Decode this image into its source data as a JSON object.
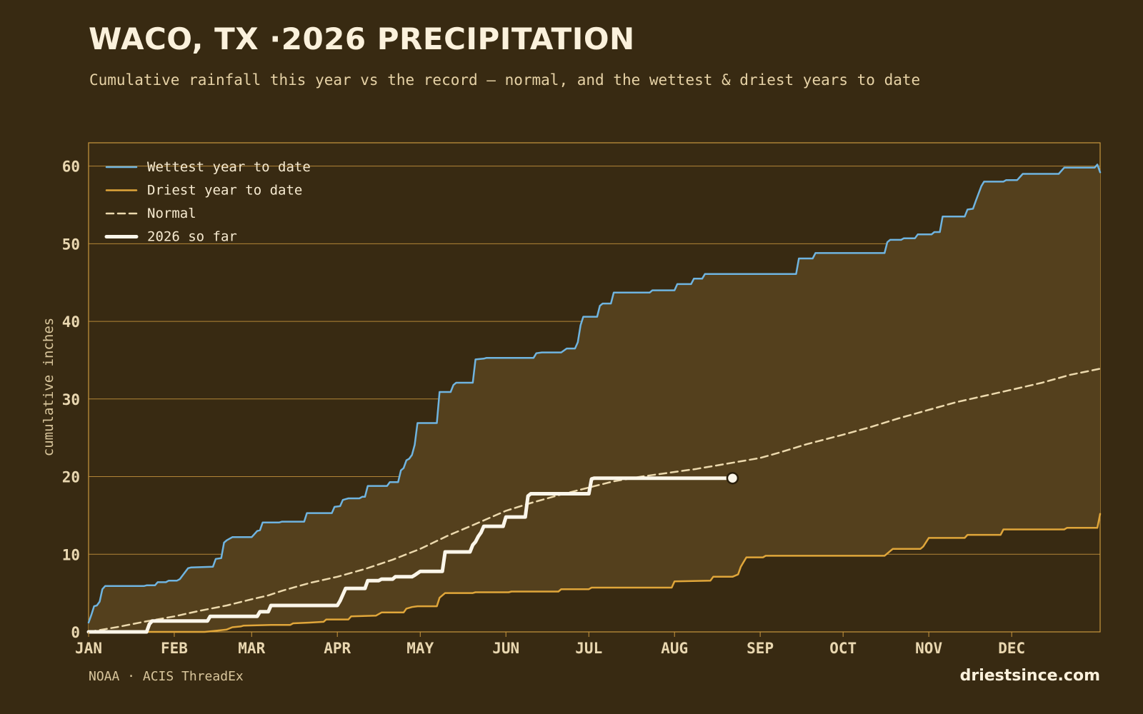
{
  "header": {
    "title": "WACO, TX ·2026 PRECIPITATION",
    "subtitle": "Cumulative rainfall this year vs the record — normal, and the wettest & driest years to date"
  },
  "footer": {
    "source": "NOAA · ACIS ThreadEx",
    "site": "driestsince.com"
  },
  "colors": {
    "background": "#382a12",
    "band": "#54401d",
    "grid": "#c9973e",
    "wettest": "#6fb4e0",
    "driest": "#e0a63a",
    "normal": "#ecd9ad",
    "current": "#fbf6ea"
  },
  "chart_data": {
    "type": "line",
    "ylabel": "cumulative inches",
    "xlabel": "",
    "xlim": [
      0,
      366
    ],
    "ylim": [
      0,
      63
    ],
    "yticks": [
      0,
      10,
      20,
      30,
      40,
      50,
      60
    ],
    "month_ticks": [
      {
        "label": "JAN",
        "day": 0
      },
      {
        "label": "FEB",
        "day": 31
      },
      {
        "label": "MAR",
        "day": 59
      },
      {
        "label": "APR",
        "day": 90
      },
      {
        "label": "MAY",
        "day": 120
      },
      {
        "label": "JUN",
        "day": 151
      },
      {
        "label": "JUL",
        "day": 181
      },
      {
        "label": "AUG",
        "day": 212
      },
      {
        "label": "SEP",
        "day": 243
      },
      {
        "label": "OCT",
        "day": 273
      },
      {
        "label": "NOV",
        "day": 304
      },
      {
        "label": "DEC",
        "day": 334
      }
    ],
    "grid": true,
    "legend_position": "top-left",
    "series": [
      {
        "name": "Wettest year to date",
        "style": "solid",
        "points": [
          [
            0,
            1.2
          ],
          [
            1,
            2.2
          ],
          [
            2,
            3.3
          ],
          [
            3,
            3.4
          ],
          [
            4,
            3.9
          ],
          [
            5,
            5.5
          ],
          [
            6,
            5.9
          ],
          [
            7,
            5.9
          ],
          [
            20,
            5.9
          ],
          [
            21,
            6.0
          ],
          [
            24,
            6.0
          ],
          [
            25,
            6.4
          ],
          [
            28,
            6.4
          ],
          [
            29,
            6.6
          ],
          [
            32,
            6.6
          ],
          [
            33,
            6.8
          ],
          [
            36,
            8.2
          ],
          [
            37,
            8.3
          ],
          [
            45,
            8.4
          ],
          [
            46,
            9.4
          ],
          [
            48,
            9.5
          ],
          [
            49,
            11.5
          ],
          [
            50,
            11.8
          ],
          [
            52,
            12.2
          ],
          [
            59,
            12.2
          ],
          [
            61,
            13.0
          ],
          [
            62,
            13.1
          ],
          [
            63,
            14.1
          ],
          [
            69,
            14.1
          ],
          [
            70,
            14.2
          ],
          [
            78,
            14.2
          ],
          [
            79,
            15.3
          ],
          [
            88,
            15.3
          ],
          [
            89,
            16.1
          ],
          [
            91,
            16.2
          ],
          [
            92,
            17.0
          ],
          [
            93,
            17.1
          ],
          [
            94,
            17.2
          ],
          [
            98,
            17.2
          ],
          [
            99,
            17.4
          ],
          [
            100,
            17.4
          ],
          [
            101,
            18.8
          ],
          [
            108,
            18.8
          ],
          [
            109,
            19.3
          ],
          [
            112,
            19.3
          ],
          [
            113,
            20.8
          ],
          [
            114,
            21.1
          ],
          [
            115,
            22.1
          ],
          [
            116,
            22.3
          ],
          [
            117,
            22.8
          ],
          [
            118,
            24.1
          ],
          [
            119,
            26.9
          ],
          [
            126,
            26.9
          ],
          [
            127,
            30.9
          ],
          [
            131,
            30.9
          ],
          [
            132,
            31.8
          ],
          [
            133,
            32.1
          ],
          [
            139,
            32.1
          ],
          [
            140,
            35.1
          ],
          [
            143,
            35.2
          ],
          [
            144,
            35.3
          ],
          [
            161,
            35.3
          ],
          [
            162,
            35.9
          ],
          [
            164,
            36.0
          ],
          [
            171,
            36.0
          ],
          [
            173,
            36.5
          ],
          [
            176,
            36.5
          ],
          [
            177,
            37.3
          ],
          [
            178,
            39.5
          ],
          [
            179,
            40.6
          ],
          [
            184,
            40.6
          ],
          [
            185,
            42.0
          ],
          [
            186,
            42.3
          ],
          [
            189,
            42.3
          ],
          [
            190,
            43.7
          ],
          [
            203,
            43.7
          ],
          [
            204,
            44.0
          ],
          [
            212,
            44.0
          ],
          [
            213,
            44.8
          ],
          [
            218,
            44.8
          ],
          [
            219,
            45.5
          ],
          [
            222,
            45.5
          ],
          [
            223,
            46.1
          ],
          [
            256,
            46.1
          ],
          [
            257,
            48.1
          ],
          [
            262,
            48.1
          ],
          [
            263,
            48.8
          ],
          [
            288,
            48.8
          ],
          [
            289,
            50.2
          ],
          [
            290,
            50.5
          ],
          [
            294,
            50.5
          ],
          [
            295,
            50.7
          ],
          [
            299,
            50.7
          ],
          [
            300,
            51.2
          ],
          [
            305,
            51.2
          ],
          [
            306,
            51.5
          ],
          [
            308,
            51.5
          ],
          [
            309,
            53.5
          ],
          [
            317,
            53.5
          ],
          [
            318,
            54.4
          ],
          [
            320,
            54.5
          ],
          [
            321,
            55.5
          ],
          [
            323,
            57.4
          ],
          [
            324,
            58.0
          ],
          [
            331,
            58.0
          ],
          [
            332,
            58.2
          ],
          [
            336,
            58.2
          ],
          [
            338,
            59.0
          ],
          [
            351,
            59.0
          ],
          [
            353,
            59.8
          ],
          [
            364,
            59.8
          ],
          [
            365,
            60.2
          ],
          [
            366,
            59.2
          ]
        ]
      },
      {
        "name": "Driest year to date",
        "style": "solid",
        "points": [
          [
            0,
            0
          ],
          [
            42,
            0
          ],
          [
            45,
            0.1
          ],
          [
            50,
            0.3
          ],
          [
            52,
            0.6
          ],
          [
            55,
            0.7
          ],
          [
            56,
            0.8
          ],
          [
            66,
            0.9
          ],
          [
            73,
            0.9
          ],
          [
            74,
            1.1
          ],
          [
            80,
            1.2
          ],
          [
            85,
            1.3
          ],
          [
            86,
            1.6
          ],
          [
            94,
            1.6
          ],
          [
            95,
            2.0
          ],
          [
            104,
            2.1
          ],
          [
            106,
            2.5
          ],
          [
            114,
            2.5
          ],
          [
            115,
            3.0
          ],
          [
            117,
            3.2
          ],
          [
            119,
            3.3
          ],
          [
            126,
            3.3
          ],
          [
            127,
            4.4
          ],
          [
            129,
            5.0
          ],
          [
            139,
            5.0
          ],
          [
            140,
            5.1
          ],
          [
            152,
            5.1
          ],
          [
            153,
            5.2
          ],
          [
            170,
            5.2
          ],
          [
            171,
            5.5
          ],
          [
            181,
            5.5
          ],
          [
            182,
            5.7
          ],
          [
            211,
            5.7
          ],
          [
            212,
            6.5
          ],
          [
            225,
            6.6
          ],
          [
            226,
            7.1
          ],
          [
            233,
            7.1
          ],
          [
            235,
            7.4
          ],
          [
            236,
            8.4
          ],
          [
            237,
            9.0
          ],
          [
            238,
            9.6
          ],
          [
            244,
            9.6
          ],
          [
            245,
            9.8
          ],
          [
            288,
            9.8
          ],
          [
            291,
            10.7
          ],
          [
            301,
            10.7
          ],
          [
            302,
            11.0
          ],
          [
            304,
            12.1
          ],
          [
            317,
            12.1
          ],
          [
            318,
            12.5
          ],
          [
            330,
            12.5
          ],
          [
            331,
            13.2
          ],
          [
            353,
            13.2
          ],
          [
            354,
            13.4
          ],
          [
            365,
            13.4
          ],
          [
            366,
            15.2
          ]
        ]
      },
      {
        "name": "Normal",
        "style": "dashed",
        "points": [
          [
            0,
            0
          ],
          [
            10,
            0.6
          ],
          [
            20,
            1.3
          ],
          [
            31,
            2.0
          ],
          [
            40,
            2.7
          ],
          [
            50,
            3.4
          ],
          [
            59,
            4.2
          ],
          [
            65,
            4.7
          ],
          [
            70,
            5.3
          ],
          [
            80,
            6.3
          ],
          [
            90,
            7.1
          ],
          [
            100,
            8.1
          ],
          [
            110,
            9.3
          ],
          [
            120,
            10.7
          ],
          [
            130,
            12.4
          ],
          [
            140,
            13.9
          ],
          [
            151,
            15.6
          ],
          [
            160,
            16.6
          ],
          [
            170,
            17.6
          ],
          [
            181,
            18.6
          ],
          [
            190,
            19.4
          ],
          [
            200,
            20.0
          ],
          [
            212,
            20.6
          ],
          [
            220,
            21.0
          ],
          [
            230,
            21.6
          ],
          [
            243,
            22.4
          ],
          [
            250,
            23.1
          ],
          [
            260,
            24.2
          ],
          [
            273,
            25.4
          ],
          [
            283,
            26.4
          ],
          [
            293,
            27.5
          ],
          [
            304,
            28.6
          ],
          [
            314,
            29.6
          ],
          [
            324,
            30.4
          ],
          [
            334,
            31.2
          ],
          [
            345,
            32.1
          ],
          [
            355,
            33.1
          ],
          [
            366,
            33.9
          ]
        ]
      },
      {
        "name": "2026 so far",
        "style": "thick",
        "points": [
          [
            0,
            0
          ],
          [
            21,
            0
          ],
          [
            22,
            1.0
          ],
          [
            23,
            1.4
          ],
          [
            43,
            1.4
          ],
          [
            44,
            2.0
          ],
          [
            61,
            2.0
          ],
          [
            62,
            2.6
          ],
          [
            65,
            2.6
          ],
          [
            66,
            3.4
          ],
          [
            90,
            3.4
          ],
          [
            91,
            4.0
          ],
          [
            93,
            5.6
          ],
          [
            100,
            5.6
          ],
          [
            101,
            6.6
          ],
          [
            105,
            6.6
          ],
          [
            106,
            6.8
          ],
          [
            110,
            6.8
          ],
          [
            111,
            7.1
          ],
          [
            117,
            7.1
          ],
          [
            118,
            7.3
          ],
          [
            120,
            7.8
          ],
          [
            128,
            7.8
          ],
          [
            129,
            10.3
          ],
          [
            138,
            10.3
          ],
          [
            139,
            11.2
          ],
          [
            140,
            11.6
          ],
          [
            141,
            12.3
          ],
          [
            142,
            12.8
          ],
          [
            143,
            13.6
          ],
          [
            150,
            13.6
          ],
          [
            151,
            14.8
          ],
          [
            158,
            14.8
          ],
          [
            159,
            17.5
          ],
          [
            160,
            17.8
          ],
          [
            181,
            17.8
          ],
          [
            182,
            19.7
          ],
          [
            183,
            19.8
          ],
          [
            233,
            19.8
          ]
        ]
      }
    ],
    "current_marker": {
      "day": 233,
      "value": 19.8
    }
  }
}
